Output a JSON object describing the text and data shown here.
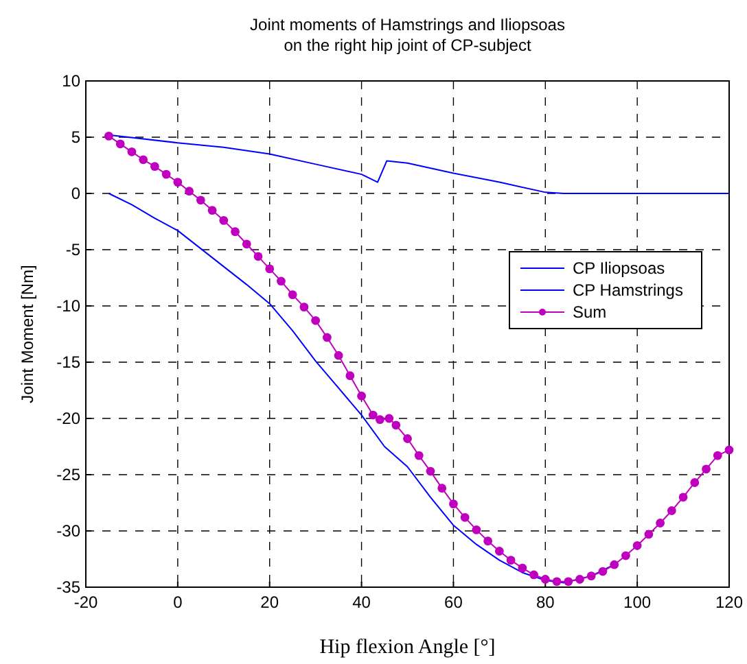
{
  "chart_data": {
    "type": "line",
    "title": "Joint moments of Hamstrings and Iliopsoas\non the right hip joint of CP-subject",
    "xlabel": "Hip flexion Angle [°]",
    "ylabel": "Joint Moment  [Nm]",
    "xlim": [
      -20,
      120
    ],
    "xticks": [
      -20,
      0,
      20,
      40,
      60,
      80,
      100,
      120
    ],
    "ylim": [
      -35,
      10
    ],
    "yticks": [
      -35,
      -30,
      -25,
      -20,
      -15,
      -10,
      -5,
      0,
      5,
      10
    ],
    "grid": true,
    "legend": "right",
    "line_style": "solid",
    "series": [
      {
        "name": "CP Iliopsoas",
        "color": "#0000ff",
        "marker": "none",
        "x": [
          -15,
          0,
          10,
          20,
          30,
          40,
          43.5,
          45.5,
          50,
          60,
          70,
          80,
          84,
          120
        ],
        "values": [
          5.2,
          4.5,
          4.1,
          3.5,
          2.6,
          1.7,
          1.0,
          2.9,
          2.7,
          1.8,
          1.0,
          0.1,
          0,
          0
        ]
      },
      {
        "name": "CP Hamstrings",
        "color": "#0000ff",
        "marker": "none",
        "x": [
          -15,
          -10,
          -5,
          0,
          5,
          10,
          15,
          20,
          25,
          30,
          35,
          40,
          45,
          50,
          55,
          60,
          65,
          70,
          75,
          80,
          84,
          90,
          95
        ],
        "values": [
          0,
          -1.0,
          -2.2,
          -3.3,
          -4.9,
          -6.5,
          -8.1,
          -9.8,
          -12.2,
          -14.9,
          -17.3,
          -19.7,
          -22.5,
          -24.3,
          -27.0,
          -29.5,
          -31.2,
          -32.6,
          -33.7,
          -34.4,
          -34.6,
          -34.0,
          -33.0
        ]
      },
      {
        "name": "Sum",
        "color": "#bf00bf",
        "marker": "circle",
        "x": [
          -15,
          -12.5,
          -10,
          -7.5,
          -5,
          -2.5,
          0,
          2.5,
          5,
          7.5,
          10,
          12.5,
          15,
          17.5,
          20,
          22.5,
          25,
          27.5,
          30,
          32.5,
          35,
          37.5,
          40,
          42.5,
          44,
          46,
          47.5,
          50,
          52.5,
          55,
          57.5,
          60,
          62.5,
          65,
          67.5,
          70,
          72.5,
          75,
          77.5,
          80,
          82.5,
          85,
          87.5,
          90,
          92.5,
          95,
          97.5,
          100,
          102.5,
          105,
          107.5,
          110,
          112.5,
          115,
          117.5,
          120
        ],
        "values": [
          5.1,
          4.4,
          3.7,
          3.0,
          2.4,
          1.7,
          1.0,
          0.2,
          -0.6,
          -1.5,
          -2.4,
          -3.4,
          -4.5,
          -5.6,
          -6.7,
          -7.8,
          -9.0,
          -10.1,
          -11.3,
          -12.8,
          -14.4,
          -16.2,
          -18.0,
          -19.7,
          -20.1,
          -20.0,
          -20.6,
          -21.8,
          -23.3,
          -24.7,
          -26.2,
          -27.6,
          -28.8,
          -29.9,
          -30.9,
          -31.8,
          -32.6,
          -33.3,
          -33.9,
          -34.3,
          -34.5,
          -34.5,
          -34.3,
          -34.0,
          -33.6,
          -33.0,
          -32.2,
          -31.3,
          -30.3,
          -29.3,
          -28.2,
          -27.0,
          -25.7,
          -24.5,
          -23.3,
          -22.8
        ]
      }
    ]
  }
}
